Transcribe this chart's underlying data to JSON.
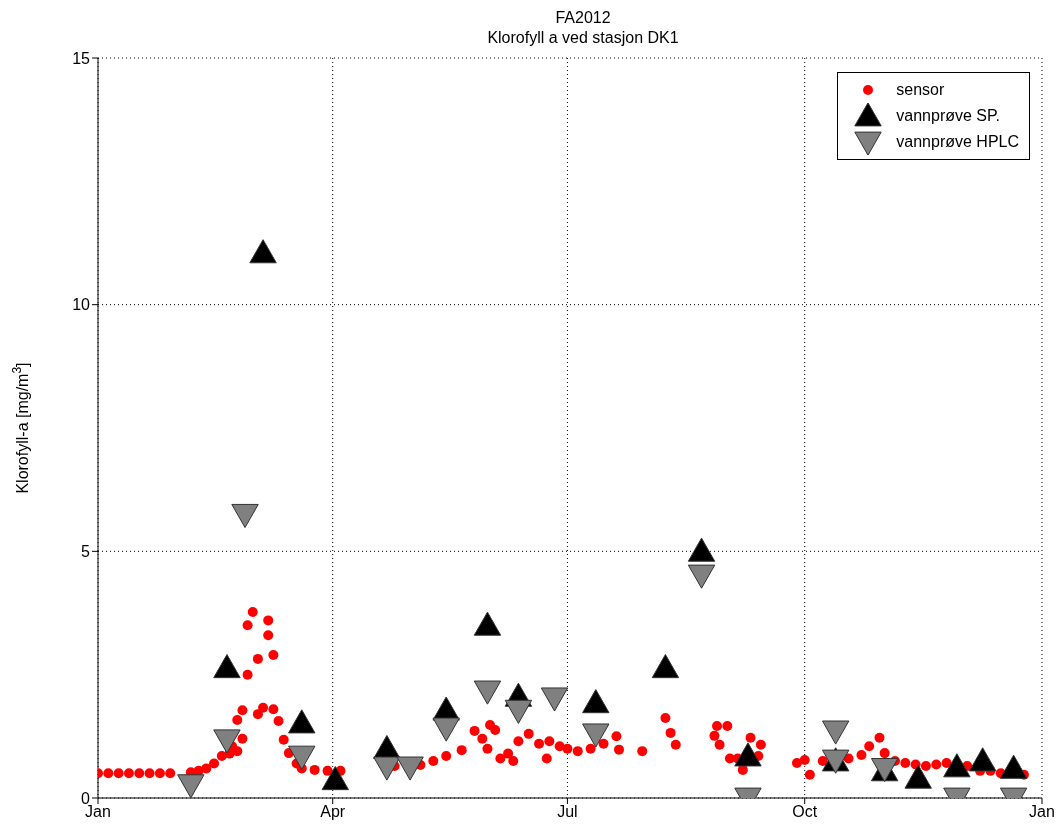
{
  "chart_data": {
    "type": "scatter",
    "title": "FA2012",
    "subtitle": "Klorofyll a ved stasjon DK1",
    "ylabel": "Klorofyll-a [mg/m$^{3}$]",
    "xlim": [
      "2012-01-01",
      "2013-01-01"
    ],
    "xticks": [
      {
        "value": "2012-01-01",
        "label": "Jan"
      },
      {
        "value": "2012-04-01",
        "label": "Apr"
      },
      {
        "value": "2012-07-01",
        "label": "Jul"
      },
      {
        "value": "2012-10-01",
        "label": "Oct"
      },
      {
        "value": "2013-01-01",
        "label": "Jan"
      }
    ],
    "ylim": [
      0,
      15
    ],
    "yticks": [
      0,
      5,
      10,
      15
    ],
    "grid": true,
    "legend": "top right",
    "series": [
      {
        "name": "sensor",
        "color": "#ff0000",
        "marker": "circle",
        "x": [
          "2012-01-01",
          "2012-01-05",
          "2012-01-09",
          "2012-01-13",
          "2012-01-17",
          "2012-01-21",
          "2012-01-25",
          "2012-01-29",
          "2012-02-06",
          "2012-02-09",
          "2012-02-12",
          "2012-02-15",
          "2012-02-18",
          "2012-02-21",
          "2012-02-22",
          "2012-02-24",
          "2012-02-24",
          "2012-02-26",
          "2012-02-26",
          "2012-02-28",
          "2012-02-28",
          "2012-03-01",
          "2012-03-03",
          "2012-03-03",
          "2012-03-05",
          "2012-03-07",
          "2012-03-07",
          "2012-03-09",
          "2012-03-09",
          "2012-03-11",
          "2012-03-13",
          "2012-03-15",
          "2012-03-18",
          "2012-03-20",
          "2012-03-25",
          "2012-03-30",
          "2012-04-04",
          "2012-04-25",
          "2012-05-05",
          "2012-05-10",
          "2012-05-15",
          "2012-05-21",
          "2012-05-26",
          "2012-05-29",
          "2012-05-31",
          "2012-06-01",
          "2012-06-03",
          "2012-06-05",
          "2012-06-08",
          "2012-06-10",
          "2012-06-12",
          "2012-06-16",
          "2012-06-20",
          "2012-06-23",
          "2012-06-24",
          "2012-06-28",
          "2012-07-01",
          "2012-07-05",
          "2012-07-10",
          "2012-07-15",
          "2012-07-20",
          "2012-07-21",
          "2012-07-30",
          "2012-08-08",
          "2012-08-10",
          "2012-08-12",
          "2012-08-27",
          "2012-08-28",
          "2012-08-29",
          "2012-09-01",
          "2012-09-02",
          "2012-09-05",
          "2012-09-07",
          "2012-09-10",
          "2012-09-14",
          "2012-09-13",
          "2012-09-28",
          "2012-10-01",
          "2012-10-03",
          "2012-10-08",
          "2012-10-18",
          "2012-10-23",
          "2012-10-26",
          "2012-10-30",
          "2012-11-01",
          "2012-11-05",
          "2012-11-09",
          "2012-11-13",
          "2012-11-17",
          "2012-11-21",
          "2012-11-25",
          "2012-12-03",
          "2012-12-08",
          "2012-12-12",
          "2012-12-16",
          "2012-12-25"
        ],
        "values": [
          0.5,
          0.5,
          0.5,
          0.5,
          0.5,
          0.5,
          0.5,
          0.5,
          0.52,
          0.55,
          0.6,
          0.7,
          0.85,
          0.9,
          1.05,
          0.95,
          1.58,
          1.2,
          1.78,
          2.5,
          3.5,
          3.77,
          2.82,
          1.7,
          1.83,
          3.6,
          3.3,
          2.9,
          1.8,
          1.56,
          1.18,
          0.91,
          0.7,
          0.6,
          0.57,
          0.55,
          0.55,
          0.65,
          0.67,
          0.75,
          0.85,
          0.97,
          1.36,
          1.2,
          1.0,
          1.48,
          1.38,
          0.8,
          0.9,
          0.75,
          1.15,
          1.3,
          1.1,
          0.8,
          1.15,
          1.05,
          1.0,
          0.95,
          1.0,
          1.1,
          1.25,
          0.98,
          0.95,
          1.62,
          1.32,
          1.08,
          1.26,
          1.46,
          1.08,
          1.46,
          0.8,
          0.8,
          0.57,
          1.22,
          1.08,
          0.85,
          0.71,
          0.77,
          0.47,
          0.75,
          0.8,
          0.87,
          1.05,
          1.22,
          0.91,
          0.75,
          0.71,
          0.68,
          0.65,
          0.68,
          0.71,
          0.65,
          0.55,
          0.55,
          0.5,
          0.47
        ]
      },
      {
        "name": "vannprøve SP.",
        "color": "#000000",
        "marker": "triangle",
        "x": [
          "2012-02-20",
          "2012-03-05",
          "2012-03-20",
          "2012-04-02",
          "2012-04-22",
          "2012-05-15",
          "2012-05-31",
          "2012-06-12",
          "2012-07-12",
          "2012-08-08",
          "2012-08-22",
          "2012-09-09",
          "2012-10-13",
          "2012-11-01",
          "2012-11-14",
          "2012-11-29",
          "2012-12-09",
          "2012-12-21"
        ],
        "values": [
          2.64,
          11.05,
          1.52,
          0.37,
          1.0,
          1.78,
          3.5,
          2.06,
          1.93,
          2.64,
          5.0,
          0.85,
          0.75,
          0.55,
          0.4,
          0.63,
          0.75,
          0.6
        ]
      },
      {
        "name": "vannprøve HPLC",
        "color": "#808080",
        "marker": "triangle-down",
        "x": [
          "2012-02-06",
          "2012-02-20",
          "2012-02-27",
          "2012-03-20",
          "2012-04-22",
          "2012-05-01",
          "2012-05-15",
          "2012-05-31",
          "2012-06-12",
          "2012-06-26",
          "2012-07-12",
          "2012-08-22",
          "2012-09-09",
          "2012-10-13",
          "2012-10-13",
          "2012-11-01",
          "2012-11-29",
          "2012-12-21"
        ],
        "values": [
          0.27,
          1.18,
          5.75,
          0.85,
          0.63,
          0.63,
          1.42,
          2.17,
          1.78,
          2.03,
          1.3,
          4.52,
          0,
          1.36,
          0.77,
          0.6,
          0,
          0
        ]
      }
    ]
  }
}
